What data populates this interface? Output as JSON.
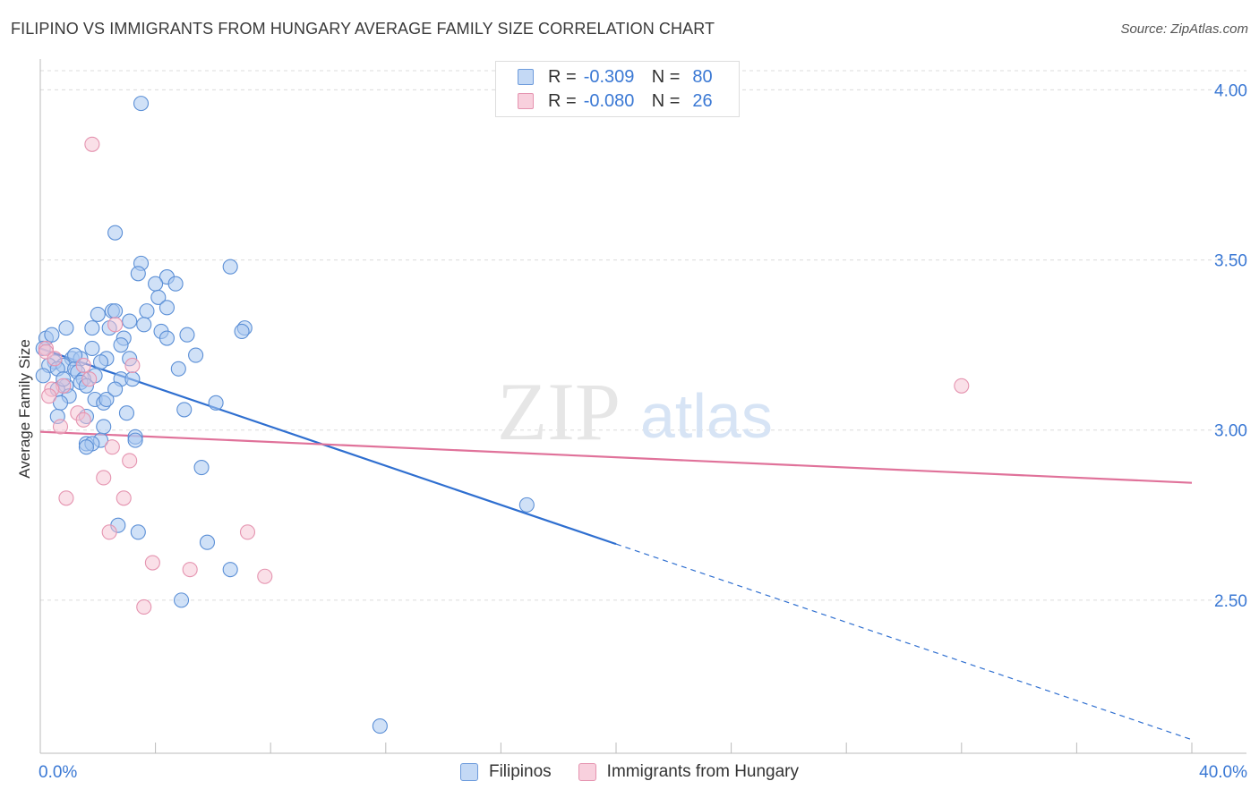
{
  "title": "FILIPINO VS IMMIGRANTS FROM HUNGARY AVERAGE FAMILY SIZE CORRELATION CHART",
  "source": "Source: ZipAtlas.com",
  "watermark": {
    "zip": "ZIP",
    "atlas": "atlas"
  },
  "legend": {
    "rows": [
      {
        "r_label": "R =",
        "r_value": "-0.309",
        "n_label": "N =",
        "n_value": "80"
      },
      {
        "r_label": "R =",
        "r_value": "-0.080",
        "n_label": "N =",
        "n_value": "26"
      }
    ]
  },
  "bottom_legend": {
    "series1": "Filipinos",
    "series2": "Immigrants from Hungary"
  },
  "colors": {
    "blue_fill": "#a9c8f0",
    "blue_stroke": "#5b8fd6",
    "blue_line": "#2f6fd0",
    "pink_fill": "#f5c2d2",
    "pink_stroke": "#e594b0",
    "pink_line": "#e0729a",
    "tick_text": "#3a78d4",
    "grid": "#dcdcdc"
  },
  "chart_data": {
    "type": "scatter",
    "title": "FILIPINO VS IMMIGRANTS FROM HUNGARY AVERAGE FAMILY SIZE CORRELATION CHART",
    "xlabel": "",
    "ylabel": "Average Family Size",
    "xlim": [
      0,
      40
    ],
    "ylim": [
      2.05,
      4.08
    ],
    "x_tick_labels": [
      "0.0%",
      "40.0%"
    ],
    "y_ticks": [
      2.5,
      3.0,
      3.5,
      4.0
    ],
    "y_tick_labels": [
      "2.50",
      "3.00",
      "3.50",
      "4.00"
    ],
    "series": [
      {
        "name": "Filipinos",
        "R": -0.309,
        "N": 80,
        "trend": {
          "x0": 0,
          "y0": 3.24,
          "x1": 20,
          "y1": 2.665,
          "x_dash_end": 40,
          "y_dash_end": 2.09
        },
        "points": [
          [
            3.5,
            3.96
          ],
          [
            2.6,
            3.58
          ],
          [
            3.5,
            3.49
          ],
          [
            6.6,
            3.48
          ],
          [
            3.4,
            3.46
          ],
          [
            4.4,
            3.45
          ],
          [
            4.7,
            3.43
          ],
          [
            4.0,
            3.43
          ],
          [
            4.1,
            3.39
          ],
          [
            2.5,
            3.35
          ],
          [
            2.6,
            3.35
          ],
          [
            3.7,
            3.35
          ],
          [
            4.4,
            3.36
          ],
          [
            3.1,
            3.32
          ],
          [
            3.6,
            3.31
          ],
          [
            7.1,
            3.3
          ],
          [
            7.0,
            3.29
          ],
          [
            0.9,
            3.3
          ],
          [
            1.8,
            3.3
          ],
          [
            2.4,
            3.3
          ],
          [
            4.2,
            3.29
          ],
          [
            5.1,
            3.28
          ],
          [
            4.4,
            3.27
          ],
          [
            2.9,
            3.27
          ],
          [
            0.2,
            3.27
          ],
          [
            2.8,
            3.25
          ],
          [
            0.1,
            3.24
          ],
          [
            1.8,
            3.24
          ],
          [
            5.4,
            3.22
          ],
          [
            2.3,
            3.21
          ],
          [
            1.1,
            3.21
          ],
          [
            1.4,
            3.21
          ],
          [
            3.1,
            3.21
          ],
          [
            0.5,
            3.2
          ],
          [
            0.8,
            3.19
          ],
          [
            2.1,
            3.2
          ],
          [
            0.3,
            3.19
          ],
          [
            0.6,
            3.18
          ],
          [
            1.2,
            3.18
          ],
          [
            1.3,
            3.17
          ],
          [
            1.9,
            3.16
          ],
          [
            1.5,
            3.15
          ],
          [
            2.8,
            3.15
          ],
          [
            3.2,
            3.15
          ],
          [
            0.1,
            3.16
          ],
          [
            1.4,
            3.14
          ],
          [
            0.9,
            3.13
          ],
          [
            1.6,
            3.13
          ],
          [
            0.6,
            3.12
          ],
          [
            1.0,
            3.1
          ],
          [
            1.9,
            3.09
          ],
          [
            2.2,
            3.08
          ],
          [
            2.3,
            3.09
          ],
          [
            0.7,
            3.08
          ],
          [
            6.1,
            3.08
          ],
          [
            5.0,
            3.06
          ],
          [
            0.6,
            3.04
          ],
          [
            1.6,
            3.04
          ],
          [
            2.2,
            3.01
          ],
          [
            3.3,
            2.98
          ],
          [
            3.3,
            2.97
          ],
          [
            2.1,
            2.97
          ],
          [
            1.6,
            2.96
          ],
          [
            1.8,
            2.96
          ],
          [
            1.6,
            2.95
          ],
          [
            5.6,
            2.89
          ],
          [
            16.9,
            2.78
          ],
          [
            2.7,
            2.72
          ],
          [
            3.4,
            2.7
          ],
          [
            5.8,
            2.67
          ],
          [
            6.6,
            2.59
          ],
          [
            4.9,
            2.5
          ],
          [
            11.8,
            2.13
          ],
          [
            2.0,
            3.34
          ],
          [
            0.8,
            3.15
          ],
          [
            1.2,
            3.22
          ],
          [
            3.0,
            3.05
          ],
          [
            0.4,
            3.28
          ],
          [
            2.6,
            3.12
          ],
          [
            4.8,
            3.18
          ]
        ]
      },
      {
        "name": "Immigrants from Hungary",
        "R": -0.08,
        "N": 26,
        "trend": {
          "x0": 0,
          "y0": 2.995,
          "x1": 40,
          "y1": 2.845
        },
        "points": [
          [
            1.8,
            3.84
          ],
          [
            0.2,
            3.24
          ],
          [
            0.2,
            3.23
          ],
          [
            0.5,
            3.21
          ],
          [
            2.6,
            3.31
          ],
          [
            3.2,
            3.19
          ],
          [
            1.5,
            3.19
          ],
          [
            0.8,
            3.13
          ],
          [
            1.7,
            3.15
          ],
          [
            0.4,
            3.12
          ],
          [
            0.3,
            3.1
          ],
          [
            1.3,
            3.05
          ],
          [
            1.5,
            3.03
          ],
          [
            0.7,
            3.01
          ],
          [
            2.5,
            2.95
          ],
          [
            3.1,
            2.91
          ],
          [
            2.2,
            2.86
          ],
          [
            0.9,
            2.8
          ],
          [
            2.9,
            2.8
          ],
          [
            2.4,
            2.7
          ],
          [
            7.2,
            2.7
          ],
          [
            3.9,
            2.61
          ],
          [
            5.2,
            2.59
          ],
          [
            7.8,
            2.57
          ],
          [
            3.6,
            2.48
          ],
          [
            32.0,
            3.13
          ]
        ]
      }
    ]
  }
}
